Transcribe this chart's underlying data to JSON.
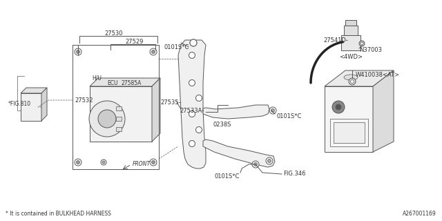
{
  "bg_color": "#ffffff",
  "line_color": "#555555",
  "footnote": "* It is contained in BULKHEAD HARNESS",
  "diagram_id": "A267001169",
  "labels": {
    "fig810": "*FIG.810",
    "h_u": "H/U",
    "ecu": "ECU",
    "front": "FRONT",
    "27530": "27530",
    "27529": "27529",
    "27585A": "27585A",
    "27532": "27532",
    "27533A": "27533A-",
    "27535": "27535-",
    "0238S": "0238S",
    "0101SC_top": "0101S*C",
    "0101SC_right": "0101S*C",
    "0101SC_bot": "0101S*C",
    "fig346": "FIG.346",
    "W410038AT": "W410038<AT>",
    "N37003": "N37003",
    "27541D": "27541D-",
    "4WD": "<4WD>"
  }
}
